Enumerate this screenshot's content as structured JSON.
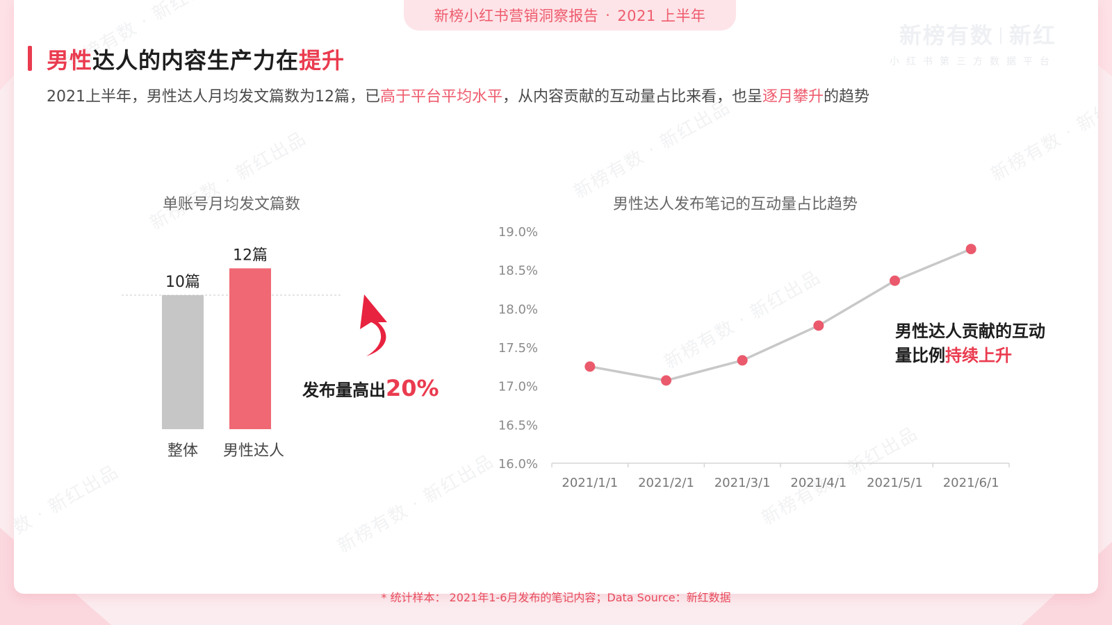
{
  "header": {
    "report_title": "新榜小红书营销洞察报告",
    "report_period": "2021 上半年",
    "brand_main": "新榜有数",
    "brand_secondary": "新红",
    "brand_tagline": "小红书第三方数据平台"
  },
  "title": {
    "part1": "男性",
    "part2": "达人的内容生产力在",
    "part3": "提升"
  },
  "subtitle": {
    "part1": "2021上半年，男性达人月均发文篇数为12篇，已",
    "part2": "高于平台平均水平",
    "part3": "，从内容贡献的互动量占比来看，也呈",
    "part4": "逐月攀升",
    "part5": "的趋势"
  },
  "watermark_text": "新榜有数 · 新红出品",
  "annotations": {
    "bar_callout_text": "发布量高出",
    "bar_callout_value": "20%",
    "line_callout_line1": "男性达人贡献的互动",
    "line_callout_line2_prefix": "量比例",
    "line_callout_line2_highlight": "持续上升"
  },
  "colors": {
    "accent": "#ea3b4f",
    "bar_overall": "#c6c6c6",
    "bar_male": "#ef6873",
    "line": "#c8c8c8",
    "point": "#ea5a6c"
  },
  "chart_data": [
    {
      "type": "bar",
      "title": "单账号月均发文篇数",
      "categories": [
        "整体",
        "男性达人"
      ],
      "values": [
        10,
        12
      ],
      "value_labels": [
        "10篇",
        "12篇"
      ],
      "ylim": [
        0,
        13
      ]
    },
    {
      "type": "line",
      "title": "男性达人发布笔记的互动量占比趋势",
      "x": [
        "2021/1/1",
        "2021/2/1",
        "2021/3/1",
        "2021/4/1",
        "2021/5/1",
        "2021/6/1"
      ],
      "values": [
        17.25,
        17.07,
        17.33,
        17.78,
        18.36,
        18.77
      ],
      "ylim": [
        16.0,
        19.0
      ],
      "yticks": [
        "16.0%",
        "16.5%",
        "17.0%",
        "17.5%",
        "18.0%",
        "18.5%",
        "19.0%"
      ],
      "ytick_values": [
        16.0,
        16.5,
        17.0,
        17.5,
        18.0,
        18.5,
        19.0
      ],
      "grid": false
    }
  ],
  "footer": {
    "text": "* 统计样本： 2021年1-6月发布的笔记内容；Data Source：新红数据"
  }
}
